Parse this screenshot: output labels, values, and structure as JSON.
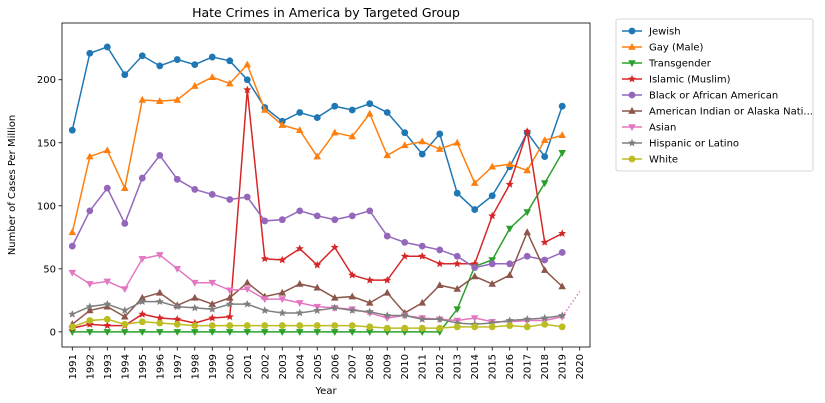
{
  "chart_data": {
    "type": "line",
    "title": "Hate Crimes in America by Targeted Group",
    "xlabel": "Year",
    "ylabel": "Number of Cases Per Million",
    "xlim": [
      1991,
      2020
    ],
    "ylim": [
      -12,
      245
    ],
    "yticks": [
      0,
      50,
      100,
      150,
      200
    ],
    "x": [
      1991,
      1992,
      1993,
      1994,
      1995,
      1996,
      1997,
      1998,
      1999,
      2000,
      2001,
      2002,
      2003,
      2004,
      2005,
      2006,
      2007,
      2008,
      2009,
      2010,
      2011,
      2012,
      2013,
      2014,
      2015,
      2016,
      2017,
      2018,
      2019
    ],
    "x_tick_labels": [
      "1991",
      "1992",
      "1993",
      "1994",
      "1995",
      "1996",
      "1997",
      "1998",
      "1999",
      "2000",
      "2001",
      "2002",
      "2003",
      "2004",
      "2005",
      "2006",
      "2007",
      "2008",
      "2009",
      "2010",
      "2011",
      "2012",
      "2013",
      "2014",
      "2015",
      "2016",
      "2017",
      "2018",
      "2019",
      "2020"
    ],
    "legend_position": "outside-right",
    "grid": false,
    "series": [
      {
        "name": "Jewish",
        "color": "#1f77b4",
        "marker": "circle",
        "values": [
          160,
          221,
          226,
          204,
          219,
          211,
          216,
          212,
          218,
          215,
          200,
          178,
          167,
          174,
          170,
          179,
          176,
          181,
          174,
          158,
          141,
          157,
          110,
          97,
          108,
          131,
          158,
          139,
          179
        ]
      },
      {
        "name": "Gay (Male)",
        "color": "#ff7f0e",
        "marker": "triangle-up",
        "values": [
          79,
          139,
          144,
          114,
          184,
          183,
          184,
          195,
          202,
          197,
          212,
          176,
          164,
          160,
          139,
          158,
          155,
          173,
          140,
          148,
          151,
          145,
          150,
          118,
          131,
          133,
          128,
          152,
          156
        ]
      },
      {
        "name": "Transgender",
        "color": "#2ca02c",
        "marker": "triangle-down",
        "values": [
          0,
          0,
          0,
          0,
          0,
          0,
          0,
          0,
          0,
          0,
          0,
          0,
          0,
          0,
          0,
          0,
          0,
          0,
          0,
          0,
          0,
          0,
          18,
          52,
          57,
          82,
          95,
          118,
          142
        ]
      },
      {
        "name": "Islamic (Muslim)",
        "color": "#d62728",
        "marker": "star",
        "values": [
          3,
          6,
          5,
          5,
          14,
          11,
          10,
          7,
          11,
          12,
          192,
          58,
          57,
          66,
          53,
          67,
          45,
          41,
          41,
          60,
          60,
          54,
          54,
          54,
          92,
          117,
          159,
          71,
          78
        ]
      },
      {
        "name": "Black or African American",
        "color": "#9467bd",
        "marker": "circle",
        "values": [
          68,
          96,
          114,
          86,
          122,
          140,
          121,
          113,
          109,
          105,
          107,
          88,
          89,
          96,
          92,
          89,
          92,
          96,
          76,
          71,
          68,
          65,
          60,
          51,
          54,
          54,
          60,
          57,
          63
        ]
      },
      {
        "name": "American Indian or Alaska Nati...",
        "color": "#8c564b",
        "marker": "triangle-up",
        "values": [
          6,
          17,
          20,
          12,
          27,
          31,
          21,
          27,
          22,
          27,
          39,
          28,
          31,
          38,
          35,
          27,
          28,
          23,
          31,
          15,
          23,
          37,
          34,
          44,
          38,
          45,
          79,
          49,
          36
        ]
      },
      {
        "name": "Asian",
        "color": "#e377c2",
        "marker": "triangle-down",
        "values": [
          47,
          38,
          40,
          34,
          58,
          61,
          50,
          39,
          39,
          33,
          34,
          26,
          26,
          23,
          20,
          19,
          18,
          15,
          11,
          13,
          11,
          10,
          9,
          11,
          8,
          8,
          9,
          9,
          12
        ],
        "projection": {
          "x": [
            2019,
            2020
          ],
          "values": [
            12,
            32
          ]
        }
      },
      {
        "name": "Hispanic or Latino",
        "color": "#7f7f7f",
        "marker": "star",
        "values": [
          14,
          20,
          22,
          17,
          24,
          24,
          20,
          19,
          18,
          22,
          22,
          17,
          15,
          15,
          17,
          19,
          17,
          16,
          13,
          13,
          10,
          10,
          7,
          6,
          7,
          9,
          10,
          11,
          13
        ]
      },
      {
        "name": "White",
        "color": "#bcbd22",
        "marker": "circle",
        "values": [
          4,
          9,
          10,
          6,
          8,
          7,
          6,
          5,
          5,
          5,
          5,
          5,
          5,
          5,
          5,
          5,
          5,
          4,
          3,
          3,
          3,
          3,
          4,
          4,
          4,
          5,
          4,
          6,
          4
        ]
      }
    ]
  }
}
